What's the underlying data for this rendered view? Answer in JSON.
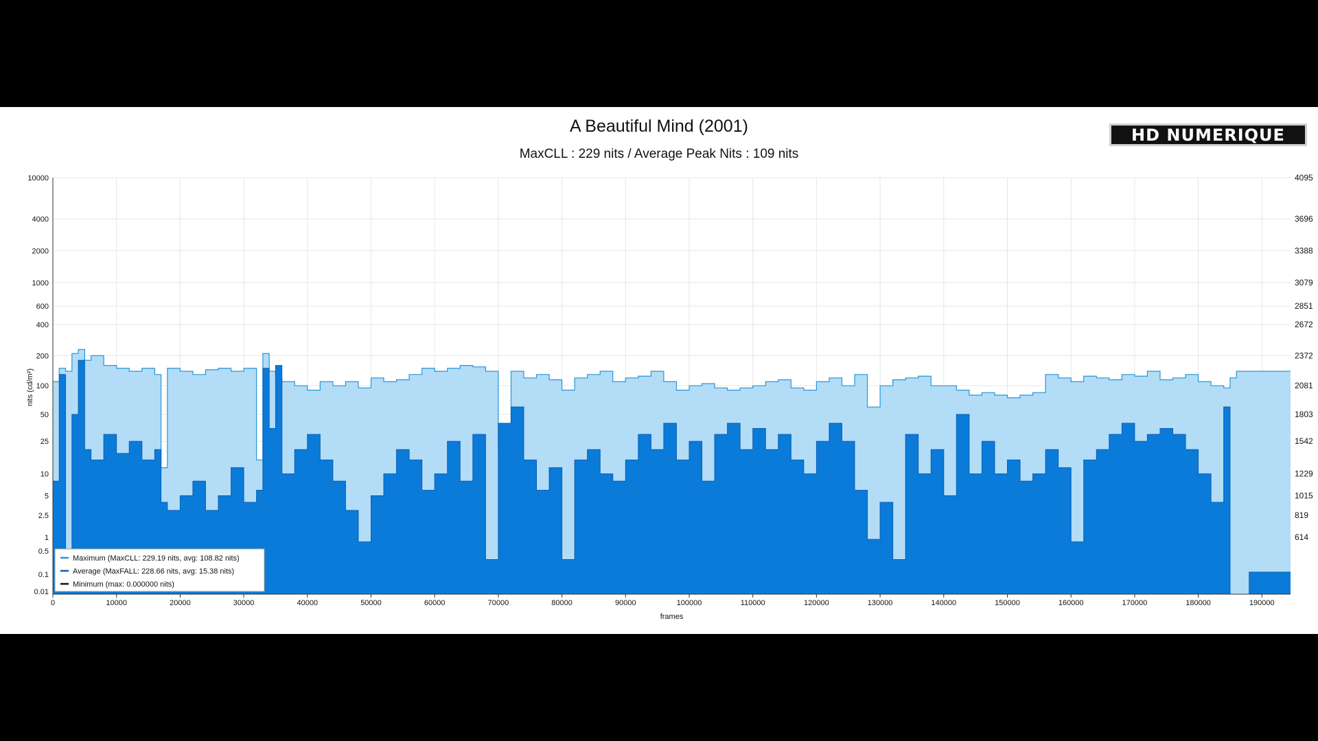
{
  "header": {
    "title": "A Beautiful Mind (2001)",
    "subtitle": "MaxCLL : 229 nits / Average Peak Nits : 109 nits",
    "logo_text": "HD NUMERIQUE"
  },
  "colors": {
    "maximum_fill": "#b3dcf7",
    "maximum_line": "#2596d6",
    "average_fill": "#0b7bd9",
    "average_line": "#0a5fb0",
    "minimum_line": "#111111"
  },
  "chart_data": {
    "type": "area",
    "xlabel": "frames",
    "ylabel": "nits (cd/m²)",
    "xlim": [
      0,
      194500
    ],
    "ylim": [
      0.005,
      10000
    ],
    "y_scale": "pq",
    "grid": true,
    "legend_position": "bottom-left",
    "x_ticks": [
      "0",
      "10000",
      "20000",
      "30000",
      "40000",
      "50000",
      "60000",
      "70000",
      "80000",
      "90000",
      "100000",
      "110000",
      "120000",
      "130000",
      "140000",
      "150000",
      "160000",
      "170000",
      "180000",
      "190000"
    ],
    "y_ticks": [
      {
        "value": 10000,
        "label": "10000",
        "code": "4095"
      },
      {
        "value": 4000,
        "label": "4000",
        "code": "3696"
      },
      {
        "value": 2000,
        "label": "2000",
        "code": "3388"
      },
      {
        "value": 1000,
        "label": "1000",
        "code": "3079"
      },
      {
        "value": 600,
        "label": "600",
        "code": "2851"
      },
      {
        "value": 400,
        "label": "400",
        "code": "2672"
      },
      {
        "value": 200,
        "label": "200",
        "code": "2372"
      },
      {
        "value": 100,
        "label": "100",
        "code": "2081"
      },
      {
        "value": 50,
        "label": "50",
        "code": "1803"
      },
      {
        "value": 25,
        "label": "25",
        "code": "1542"
      },
      {
        "value": 10,
        "label": "10",
        "code": "1229"
      },
      {
        "value": 5,
        "label": "5",
        "code": "1015"
      },
      {
        "value": 2.5,
        "label": "2.5",
        "code": "819"
      },
      {
        "value": 1,
        "label": "1",
        "code": "614"
      },
      {
        "value": 0.5,
        "label": "0.5",
        "code": ""
      },
      {
        "value": 0.1,
        "label": "0.1",
        "code": ""
      },
      {
        "value": 0.01,
        "label": "0.01",
        "code": ""
      }
    ],
    "legend": [
      {
        "label": "Maximum (MaxCLL: 229.19 nits, avg: 108.82 nits)",
        "color": "#2596d6"
      },
      {
        "label": "Average (MaxFALL: 228.66 nits, avg: 15.38 nits)",
        "color": "#0a5fb0"
      },
      {
        "label": "Minimum (max: 0.000000 nits)",
        "color": "#111111"
      }
    ],
    "series": [
      {
        "name": "Maximum",
        "x": [
          0,
          1000,
          2000,
          3000,
          4000,
          5000,
          6000,
          8000,
          10000,
          12000,
          14000,
          16000,
          17000,
          18000,
          20000,
          22000,
          24000,
          26000,
          28000,
          30000,
          32000,
          33000,
          34000,
          35000,
          36000,
          38000,
          40000,
          42000,
          44000,
          46000,
          48000,
          50000,
          52000,
          54000,
          56000,
          58000,
          60000,
          62000,
          64000,
          66000,
          68000,
          70000,
          72000,
          74000,
          76000,
          78000,
          80000,
          82000,
          84000,
          86000,
          88000,
          90000,
          92000,
          94000,
          96000,
          98000,
          100000,
          102000,
          104000,
          106000,
          108000,
          110000,
          112000,
          114000,
          116000,
          118000,
          120000,
          122000,
          124000,
          126000,
          128000,
          130000,
          132000,
          134000,
          136000,
          138000,
          140000,
          142000,
          144000,
          146000,
          148000,
          150000,
          152000,
          154000,
          156000,
          158000,
          160000,
          162000,
          164000,
          166000,
          168000,
          170000,
          172000,
          174000,
          176000,
          178000,
          180000,
          182000,
          184000,
          185000,
          186000,
          188000,
          190000,
          192000,
          194500
        ],
        "values": [
          110,
          150,
          140,
          210,
          230,
          180,
          200,
          160,
          150,
          140,
          150,
          130,
          12,
          150,
          140,
          130,
          145,
          150,
          140,
          150,
          15,
          210,
          140,
          120,
          110,
          100,
          90,
          110,
          100,
          110,
          95,
          120,
          110,
          115,
          130,
          150,
          140,
          150,
          160,
          155,
          140,
          20,
          140,
          120,
          130,
          115,
          90,
          120,
          130,
          140,
          110,
          120,
          125,
          140,
          110,
          90,
          100,
          105,
          95,
          90,
          95,
          100,
          110,
          115,
          95,
          90,
          110,
          120,
          100,
          130,
          60,
          100,
          115,
          120,
          125,
          100,
          100,
          90,
          80,
          85,
          80,
          75,
          80,
          85,
          130,
          120,
          110,
          125,
          120,
          115,
          130,
          125,
          140,
          115,
          120,
          130,
          110,
          100,
          95,
          120,
          140,
          140,
          140,
          140,
          140
        ]
      },
      {
        "name": "Average",
        "x": [
          0,
          1000,
          2000,
          3000,
          4000,
          5000,
          6000,
          8000,
          10000,
          12000,
          14000,
          16000,
          17000,
          18000,
          20000,
          22000,
          24000,
          26000,
          28000,
          30000,
          32000,
          33000,
          34000,
          35000,
          36000,
          38000,
          40000,
          42000,
          44000,
          46000,
          48000,
          50000,
          52000,
          54000,
          56000,
          58000,
          60000,
          62000,
          64000,
          66000,
          68000,
          70000,
          72000,
          74000,
          76000,
          78000,
          80000,
          82000,
          84000,
          86000,
          88000,
          90000,
          92000,
          94000,
          96000,
          98000,
          100000,
          102000,
          104000,
          106000,
          108000,
          110000,
          112000,
          114000,
          116000,
          118000,
          120000,
          122000,
          124000,
          126000,
          128000,
          130000,
          132000,
          134000,
          136000,
          138000,
          140000,
          142000,
          144000,
          146000,
          148000,
          150000,
          152000,
          154000,
          156000,
          158000,
          160000,
          162000,
          164000,
          166000,
          168000,
          170000,
          172000,
          174000,
          176000,
          178000,
          180000,
          182000,
          184000,
          185000,
          186000,
          188000,
          190000,
          192000,
          194500
        ],
        "values": [
          8,
          130,
          0.02,
          50,
          180,
          20,
          15,
          30,
          18,
          25,
          15,
          20,
          4,
          3,
          5,
          8,
          3,
          5,
          12,
          4,
          6,
          150,
          35,
          160,
          10,
          20,
          30,
          15,
          8,
          3,
          0.8,
          5,
          10,
          20,
          15,
          6,
          10,
          25,
          8,
          30,
          0.3,
          40,
          60,
          15,
          6,
          12,
          0.3,
          15,
          20,
          10,
          8,
          15,
          30,
          20,
          40,
          15,
          25,
          8,
          30,
          40,
          20,
          35,
          20,
          30,
          15,
          10,
          25,
          40,
          25,
          6,
          0.9,
          4,
          0.3,
          30,
          10,
          20,
          5,
          50,
          10,
          25,
          10,
          15,
          8,
          10,
          20,
          12,
          0.8,
          15,
          20,
          30,
          40,
          25,
          30,
          35,
          30,
          20,
          10,
          4,
          60,
          0.005,
          0.005,
          0.12,
          0.12,
          0.12,
          0.12
        ]
      },
      {
        "name": "Minimum",
        "x": [
          0,
          194500
        ],
        "values": [
          0,
          0
        ]
      }
    ]
  }
}
